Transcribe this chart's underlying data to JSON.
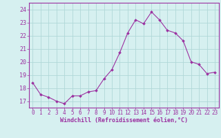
{
  "x": [
    0,
    1,
    2,
    3,
    4,
    5,
    6,
    7,
    8,
    9,
    10,
    11,
    12,
    13,
    14,
    15,
    16,
    17,
    18,
    19,
    20,
    21,
    22,
    23
  ],
  "y": [
    18.4,
    17.5,
    17.3,
    17.0,
    16.8,
    17.4,
    17.4,
    17.7,
    17.8,
    18.7,
    19.4,
    20.7,
    22.2,
    23.2,
    22.9,
    23.8,
    23.2,
    22.4,
    22.2,
    21.6,
    20.0,
    19.8,
    19.1,
    19.2
  ],
  "line_color": "#9B30A0",
  "marker": "D",
  "marker_size": 2,
  "bg_color": "#D6F0F0",
  "grid_color": "#B0D8D8",
  "xlabel": "Windchill (Refroidissement éolien,°C)",
  "ylabel_ticks": [
    17,
    18,
    19,
    20,
    21,
    22,
    23,
    24
  ],
  "xlim": [
    -0.5,
    23.5
  ],
  "ylim": [
    16.5,
    24.5
  ],
  "font_color": "#9B30A0",
  "xtick_labels": [
    "0",
    "1",
    "2",
    "3",
    "4",
    "5",
    "6",
    "7",
    "8",
    "9",
    "10",
    "11",
    "12",
    "13",
    "14",
    "15",
    "16",
    "17",
    "18",
    "19",
    "20",
    "21",
    "22",
    "23"
  ],
  "tick_fontsize": 5.5,
  "xlabel_fontsize": 6.0
}
